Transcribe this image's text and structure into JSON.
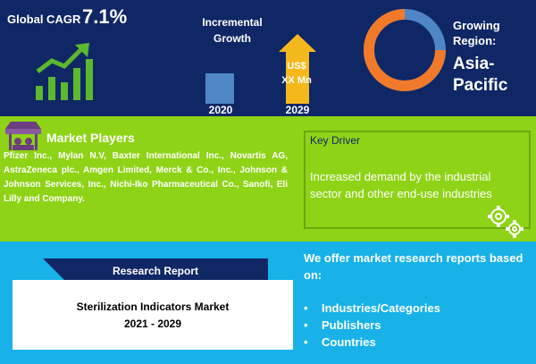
{
  "header": {
    "cagr_label": "Global CAGR",
    "cagr_value": "7.1%",
    "growth_label_line1": "Incremental",
    "growth_label_line2": "Growth",
    "year_start": "2020",
    "year_end": "2029",
    "value_line1": "US$",
    "value_line2": "XX Mn",
    "region_label_line1": "Growing",
    "region_label_line2": "Region:",
    "region_value_line1": "Asia-",
    "region_value_line2": "Pacific"
  },
  "players": {
    "title": "Market Players",
    "text": "Pfizer Inc., Mylan N.V, Baxter International Inc., Novartis AG, AstraZeneca plc., Amgen Limited, Merck & Co., Inc., Johnson & Johnson Services, Inc., Nichi-Iko Pharmaceutical Co., Sanofi, Eli Lilly and Company."
  },
  "driver": {
    "title": "Key Driver",
    "text": "Increased demand by the industrial sector and other end-use industries"
  },
  "report": {
    "ribbon_label": "Research Report",
    "name": "Sterilization Indicators Market",
    "years": "2021 - 2029"
  },
  "offer": {
    "intro": "We offer market research reports based on:",
    "items": [
      "Industries/Categories",
      "Publishers",
      "Countries"
    ]
  },
  "icons": {
    "growth": "bar-chart-growth-icon",
    "players": "market-stall-icon",
    "driver": "gears-icon"
  },
  "colors": {
    "top_band": "#102766",
    "middle_band": "#8ed316",
    "bottom_band": "#18b2e8",
    "accent_green": "#5cb82e",
    "donut_orange": "#f07a2a",
    "donut_blue": "#4f86c6"
  }
}
